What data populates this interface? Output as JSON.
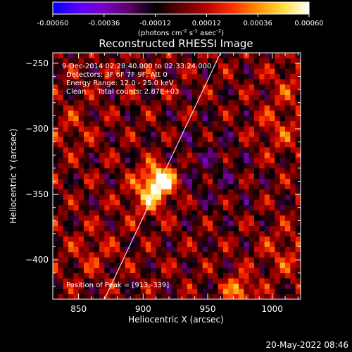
{
  "chart_data": {
    "type": "heatmap",
    "title": "Reconstructed RHESSI Image",
    "xlabel": "Heliocentric X (arcsec)",
    "ylabel": "Heliocentric Y (arcsec)",
    "xlim": [
      830,
      1022
    ],
    "ylim": [
      -430,
      -242
    ],
    "x_ticks": [
      850,
      900,
      950,
      1000
    ],
    "y_ticks": [
      -250,
      -300,
      -350,
      -400
    ],
    "annotations": [
      "9-Dec-2014 02:28:40.000 to 02:33:24.000",
      "Detectors: 3F 6F 7F 9F, Att 0",
      "Energy Range: 12.0 - 25.0 keV",
      "Clean     Total counts: 2.87E+03"
    ],
    "peak_label": "Position of Peak = [913,-339]",
    "peak": {
      "x": 913,
      "y": -339
    },
    "limb_line": {
      "x": [
        870,
        960
      ],
      "y": [
        -430,
        -242
      ]
    },
    "colorbar": {
      "range": [
        -0.0006,
        0.0006
      ],
      "ticks": [
        "-0.00060",
        "-0.00036",
        "-0.00012",
        "0.00012",
        "0.00036",
        "0.00060"
      ],
      "unit_parts": [
        "(photons cm",
        "-2",
        " s",
        "-1",
        " asec",
        "-2",
        ")"
      ],
      "colormap": [
        "#0000ff",
        "#5a00ff",
        "#7a00c8",
        "#5a0060",
        "#000000",
        "#600000",
        "#b80000",
        "#ff3000",
        "#ff9000",
        "#ffe040",
        "#ffffff"
      ]
    },
    "sources": [
      {
        "x": 913,
        "y": -339,
        "amp": 0.0006,
        "sigma": 9
      },
      {
        "x": 904,
        "y": -352,
        "amp": 0.00028,
        "sigma": 11
      },
      {
        "x": 975,
        "y": -423,
        "amp": 0.0004,
        "sigma": 7
      },
      {
        "x": 1005,
        "y": -300,
        "amp": 0.00016,
        "sigma": 14
      },
      {
        "x": 1012,
        "y": -265,
        "amp": 0.00014,
        "sigma": 10
      },
      {
        "x": 1010,
        "y": -395,
        "amp": 0.00015,
        "sigma": 13
      },
      {
        "x": 860,
        "y": -395,
        "amp": 0.00012,
        "sigma": 13
      },
      {
        "x": 845,
        "y": -300,
        "amp": 0.00012,
        "sigma": 11
      },
      {
        "x": 950,
        "y": -330,
        "amp": -0.00012,
        "sigma": 24
      }
    ]
  },
  "footer": {
    "timestamp": "20-May-2022 08:46"
  }
}
